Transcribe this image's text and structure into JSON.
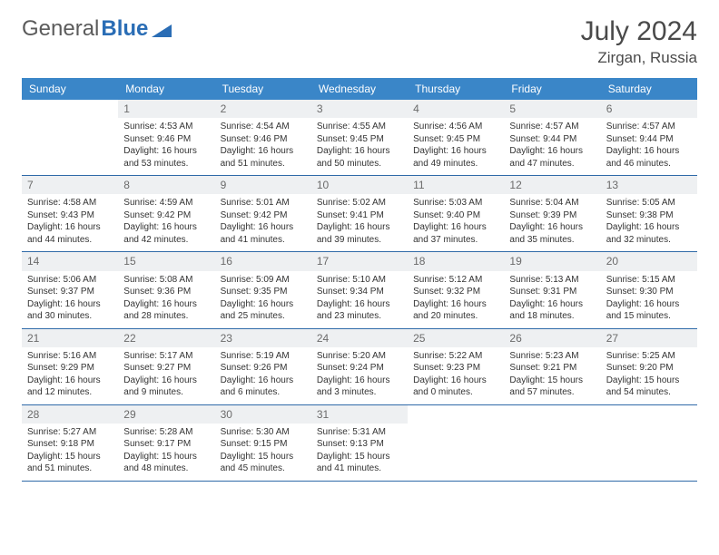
{
  "brand": {
    "part1": "General",
    "part2": "Blue"
  },
  "title": {
    "month": "July 2024",
    "location": "Zirgan, Russia"
  },
  "colors": {
    "header_bg": "#3a86c8",
    "header_text": "#ffffff",
    "divider": "#2f6aa8",
    "daynum_bg": "#eef0f2",
    "text": "#333333"
  },
  "day_headers": [
    "Sunday",
    "Monday",
    "Tuesday",
    "Wednesday",
    "Thursday",
    "Friday",
    "Saturday"
  ],
  "weeks": [
    [
      {
        "n": "",
        "sr": "",
        "ss": "",
        "dl": ""
      },
      {
        "n": "1",
        "sr": "Sunrise: 4:53 AM",
        "ss": "Sunset: 9:46 PM",
        "dl": "Daylight: 16 hours and 53 minutes."
      },
      {
        "n": "2",
        "sr": "Sunrise: 4:54 AM",
        "ss": "Sunset: 9:46 PM",
        "dl": "Daylight: 16 hours and 51 minutes."
      },
      {
        "n": "3",
        "sr": "Sunrise: 4:55 AM",
        "ss": "Sunset: 9:45 PM",
        "dl": "Daylight: 16 hours and 50 minutes."
      },
      {
        "n": "4",
        "sr": "Sunrise: 4:56 AM",
        "ss": "Sunset: 9:45 PM",
        "dl": "Daylight: 16 hours and 49 minutes."
      },
      {
        "n": "5",
        "sr": "Sunrise: 4:57 AM",
        "ss": "Sunset: 9:44 PM",
        "dl": "Daylight: 16 hours and 47 minutes."
      },
      {
        "n": "6",
        "sr": "Sunrise: 4:57 AM",
        "ss": "Sunset: 9:44 PM",
        "dl": "Daylight: 16 hours and 46 minutes."
      }
    ],
    [
      {
        "n": "7",
        "sr": "Sunrise: 4:58 AM",
        "ss": "Sunset: 9:43 PM",
        "dl": "Daylight: 16 hours and 44 minutes."
      },
      {
        "n": "8",
        "sr": "Sunrise: 4:59 AM",
        "ss": "Sunset: 9:42 PM",
        "dl": "Daylight: 16 hours and 42 minutes."
      },
      {
        "n": "9",
        "sr": "Sunrise: 5:01 AM",
        "ss": "Sunset: 9:42 PM",
        "dl": "Daylight: 16 hours and 41 minutes."
      },
      {
        "n": "10",
        "sr": "Sunrise: 5:02 AM",
        "ss": "Sunset: 9:41 PM",
        "dl": "Daylight: 16 hours and 39 minutes."
      },
      {
        "n": "11",
        "sr": "Sunrise: 5:03 AM",
        "ss": "Sunset: 9:40 PM",
        "dl": "Daylight: 16 hours and 37 minutes."
      },
      {
        "n": "12",
        "sr": "Sunrise: 5:04 AM",
        "ss": "Sunset: 9:39 PM",
        "dl": "Daylight: 16 hours and 35 minutes."
      },
      {
        "n": "13",
        "sr": "Sunrise: 5:05 AM",
        "ss": "Sunset: 9:38 PM",
        "dl": "Daylight: 16 hours and 32 minutes."
      }
    ],
    [
      {
        "n": "14",
        "sr": "Sunrise: 5:06 AM",
        "ss": "Sunset: 9:37 PM",
        "dl": "Daylight: 16 hours and 30 minutes."
      },
      {
        "n": "15",
        "sr": "Sunrise: 5:08 AM",
        "ss": "Sunset: 9:36 PM",
        "dl": "Daylight: 16 hours and 28 minutes."
      },
      {
        "n": "16",
        "sr": "Sunrise: 5:09 AM",
        "ss": "Sunset: 9:35 PM",
        "dl": "Daylight: 16 hours and 25 minutes."
      },
      {
        "n": "17",
        "sr": "Sunrise: 5:10 AM",
        "ss": "Sunset: 9:34 PM",
        "dl": "Daylight: 16 hours and 23 minutes."
      },
      {
        "n": "18",
        "sr": "Sunrise: 5:12 AM",
        "ss": "Sunset: 9:32 PM",
        "dl": "Daylight: 16 hours and 20 minutes."
      },
      {
        "n": "19",
        "sr": "Sunrise: 5:13 AM",
        "ss": "Sunset: 9:31 PM",
        "dl": "Daylight: 16 hours and 18 minutes."
      },
      {
        "n": "20",
        "sr": "Sunrise: 5:15 AM",
        "ss": "Sunset: 9:30 PM",
        "dl": "Daylight: 16 hours and 15 minutes."
      }
    ],
    [
      {
        "n": "21",
        "sr": "Sunrise: 5:16 AM",
        "ss": "Sunset: 9:29 PM",
        "dl": "Daylight: 16 hours and 12 minutes."
      },
      {
        "n": "22",
        "sr": "Sunrise: 5:17 AM",
        "ss": "Sunset: 9:27 PM",
        "dl": "Daylight: 16 hours and 9 minutes."
      },
      {
        "n": "23",
        "sr": "Sunrise: 5:19 AM",
        "ss": "Sunset: 9:26 PM",
        "dl": "Daylight: 16 hours and 6 minutes."
      },
      {
        "n": "24",
        "sr": "Sunrise: 5:20 AM",
        "ss": "Sunset: 9:24 PM",
        "dl": "Daylight: 16 hours and 3 minutes."
      },
      {
        "n": "25",
        "sr": "Sunrise: 5:22 AM",
        "ss": "Sunset: 9:23 PM",
        "dl": "Daylight: 16 hours and 0 minutes."
      },
      {
        "n": "26",
        "sr": "Sunrise: 5:23 AM",
        "ss": "Sunset: 9:21 PM",
        "dl": "Daylight: 15 hours and 57 minutes."
      },
      {
        "n": "27",
        "sr": "Sunrise: 5:25 AM",
        "ss": "Sunset: 9:20 PM",
        "dl": "Daylight: 15 hours and 54 minutes."
      }
    ],
    [
      {
        "n": "28",
        "sr": "Sunrise: 5:27 AM",
        "ss": "Sunset: 9:18 PM",
        "dl": "Daylight: 15 hours and 51 minutes."
      },
      {
        "n": "29",
        "sr": "Sunrise: 5:28 AM",
        "ss": "Sunset: 9:17 PM",
        "dl": "Daylight: 15 hours and 48 minutes."
      },
      {
        "n": "30",
        "sr": "Sunrise: 5:30 AM",
        "ss": "Sunset: 9:15 PM",
        "dl": "Daylight: 15 hours and 45 minutes."
      },
      {
        "n": "31",
        "sr": "Sunrise: 5:31 AM",
        "ss": "Sunset: 9:13 PM",
        "dl": "Daylight: 15 hours and 41 minutes."
      },
      {
        "n": "",
        "sr": "",
        "ss": "",
        "dl": ""
      },
      {
        "n": "",
        "sr": "",
        "ss": "",
        "dl": ""
      },
      {
        "n": "",
        "sr": "",
        "ss": "",
        "dl": ""
      }
    ]
  ]
}
